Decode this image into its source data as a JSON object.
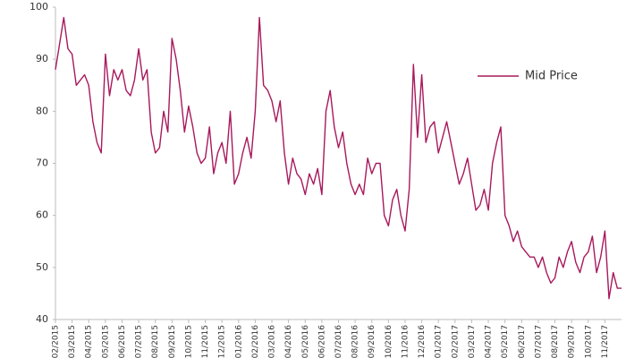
{
  "chart_data": {
    "type": "line",
    "categories": [
      "02/2015",
      null,
      null,
      null,
      "03/2015",
      null,
      null,
      null,
      "04/2015",
      null,
      null,
      null,
      "05/2015",
      null,
      null,
      null,
      "06/2015",
      null,
      null,
      null,
      "07/2015",
      null,
      null,
      null,
      "08/2015",
      null,
      null,
      null,
      "09/2015",
      null,
      null,
      null,
      "10/2015",
      null,
      null,
      null,
      "11/2015",
      null,
      null,
      null,
      "12/2015",
      null,
      null,
      null,
      "01/2016",
      null,
      null,
      null,
      "02/2016",
      null,
      null,
      null,
      "03/2016",
      null,
      null,
      null,
      "04/2016",
      null,
      null,
      null,
      "05/2016",
      null,
      null,
      null,
      "06/2016",
      null,
      null,
      null,
      "07/2016",
      null,
      null,
      null,
      "08/2016",
      null,
      null,
      null,
      "09/2016",
      null,
      null,
      null,
      "10/2016",
      null,
      null,
      null,
      "11/2016",
      null,
      null,
      null,
      "12/2016",
      null,
      null,
      null,
      "01/2017",
      null,
      null,
      null,
      "02/2017",
      null,
      null,
      null,
      "03/2017",
      null,
      null,
      null,
      "04/2017",
      null,
      null,
      null,
      "05/2017",
      null,
      null,
      null,
      "06/2017",
      null,
      null,
      null,
      "07/2017",
      null,
      null,
      null,
      "08/2017",
      null,
      null,
      null,
      "09/2017",
      null,
      null,
      null,
      "10/2017",
      null,
      null,
      null,
      "11/2017",
      null,
      null,
      null,
      null
    ],
    "series": [
      {
        "name": "Mid Price",
        "color": "#a8185c",
        "values": [
          88,
          93,
          98,
          92,
          91,
          85,
          86,
          87,
          85,
          78,
          74,
          72,
          91,
          83,
          88,
          86,
          88,
          84,
          83,
          86,
          92,
          86,
          88,
          76,
          72,
          73,
          80,
          76,
          94,
          90,
          84,
          76,
          81,
          77,
          72,
          70,
          71,
          77,
          68,
          72,
          74,
          70,
          80,
          66,
          68,
          72,
          75,
          71,
          80,
          98,
          85,
          84,
          82,
          78,
          82,
          72,
          66,
          71,
          68,
          67,
          64,
          68,
          66,
          69,
          64,
          80,
          84,
          77,
          73,
          76,
          70,
          66,
          64,
          66,
          64,
          71,
          68,
          70,
          70,
          60,
          58,
          63,
          65,
          60,
          57,
          65,
          89,
          75,
          87,
          74,
          77,
          78,
          72,
          75,
          78,
          74,
          70,
          66,
          68,
          71,
          66,
          61,
          62,
          65,
          61,
          70,
          74,
          77,
          60,
          58,
          55,
          57,
          54,
          53,
          52,
          52,
          50,
          52,
          49,
          47,
          48,
          52,
          50,
          53,
          55,
          51,
          49,
          52,
          53,
          56,
          49,
          52,
          57,
          44,
          49,
          46,
          46
        ]
      }
    ],
    "ylim": [
      40,
      100
    ],
    "yticks": [
      40,
      50,
      60,
      70,
      80,
      90,
      100
    ],
    "grid": false,
    "legend": "upper right"
  }
}
